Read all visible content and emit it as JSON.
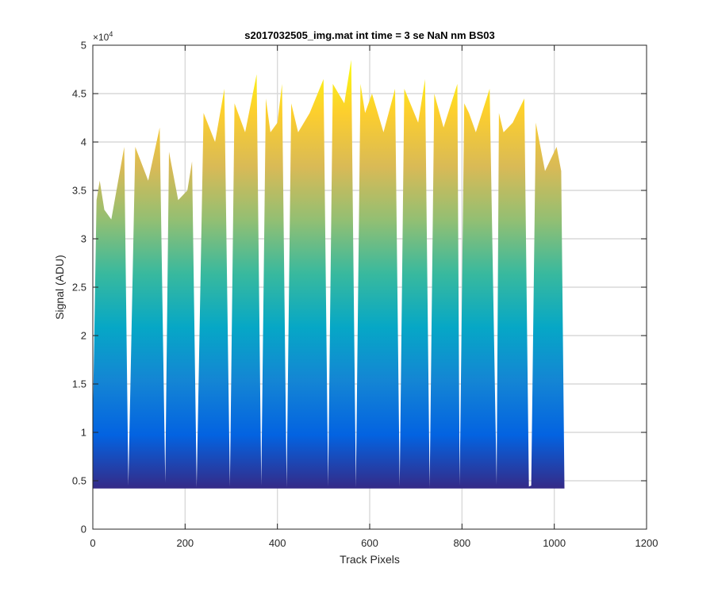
{
  "chart_data": {
    "type": "area",
    "title": "s2017032505_img.mat int time = 3 se  NaN nm BS03",
    "xlabel": "Track Pixels",
    "ylabel": "Signal (ADU)",
    "xlim": [
      0,
      1200
    ],
    "ylim": [
      0,
      50000
    ],
    "xticks": [
      0,
      200,
      400,
      600,
      800,
      1000,
      1200
    ],
    "xtick_labels": [
      "0",
      "200",
      "400",
      "600",
      "800",
      "1000",
      "1200"
    ],
    "yticks": [
      0,
      5000,
      10000,
      15000,
      20000,
      25000,
      30000,
      35000,
      40000,
      45000,
      50000
    ],
    "ytick_labels": [
      "0",
      "0.5",
      "1",
      "1.5",
      "2",
      "2.5",
      "3",
      "3.5",
      "4",
      "4.5",
      "5"
    ],
    "y_exponent_label": {
      "base": "×10",
      "power": "4"
    },
    "grid": true,
    "colormap": "parula",
    "colormap_stops": [
      "#352a87",
      "#0363e1",
      "#1485d4",
      "#06a7c6",
      "#38b99e",
      "#92bf73",
      "#d9ba56",
      "#fcce2e",
      "#f9fb0e"
    ],
    "baseline": 4200,
    "x": [
      0,
      8,
      15,
      25,
      40,
      55,
      68,
      77,
      92,
      120,
      145,
      157,
      165,
      185,
      205,
      215,
      225,
      240,
      265,
      285,
      297,
      307,
      330,
      355,
      365,
      375,
      385,
      400,
      410,
      420,
      430,
      445,
      470,
      500,
      510,
      520,
      545,
      560,
      570,
      580,
      590,
      605,
      630,
      655,
      665,
      675,
      705,
      720,
      730,
      740,
      760,
      790,
      795,
      805,
      815,
      830,
      860,
      875,
      880,
      890,
      910,
      935,
      945,
      950,
      960,
      980,
      1005,
      1015,
      1022
    ],
    "y": [
      11000,
      34000,
      36000,
      33000,
      32000,
      36000,
      39500,
      4500,
      39500,
      36000,
      41500,
      4800,
      39000,
      34000,
      35000,
      38000,
      4300,
      43000,
      40000,
      45500,
      4400,
      44000,
      41000,
      47000,
      4500,
      44500,
      41000,
      42000,
      46000,
      4300,
      44000,
      41000,
      43000,
      46500,
      4400,
      46000,
      44000,
      48500,
      4300,
      46000,
      43000,
      45000,
      41000,
      45500,
      4400,
      45500,
      42000,
      46500,
      4300,
      45000,
      41500,
      46000,
      4500,
      44000,
      43000,
      41000,
      45500,
      4600,
      43000,
      41000,
      42000,
      44500,
      4400,
      4500,
      42000,
      37000,
      39500,
      37000,
      4200
    ]
  }
}
